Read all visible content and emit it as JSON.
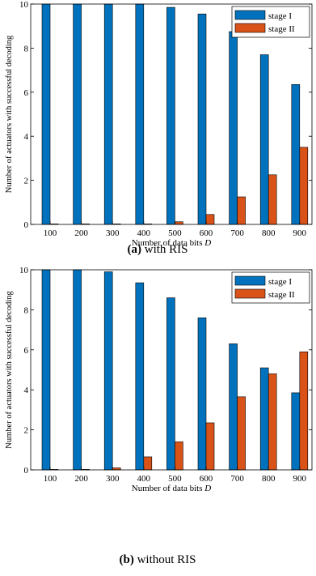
{
  "chart_data": [
    {
      "type": "bar",
      "caption_label": "(a)",
      "caption_text": "with RIS",
      "xlabel_prefix": "Number of data bits ",
      "xlabel_var": "D",
      "ylabel": "Number of actuators with successful decoding",
      "categories": [
        "100",
        "200",
        "300",
        "400",
        "500",
        "600",
        "700",
        "800",
        "900"
      ],
      "yticks": [
        "0",
        "2",
        "4",
        "6",
        "8",
        "10"
      ],
      "ylim": [
        0,
        10
      ],
      "grid": false,
      "legend_position": "top-right",
      "series": [
        {
          "name": "stage I",
          "color": "#0072BD",
          "values": [
            10,
            10,
            10,
            10,
            9.85,
            9.55,
            8.75,
            7.7,
            6.35
          ]
        },
        {
          "name": "stage II",
          "color": "#D95319",
          "values": [
            0,
            0,
            0,
            0,
            0.12,
            0.45,
            1.25,
            2.25,
            3.5
          ]
        }
      ]
    },
    {
      "type": "bar",
      "caption_label": "(b)",
      "caption_text": "without RIS",
      "xlabel_prefix": "Number of data bits ",
      "xlabel_var": "D",
      "ylabel": "Number of actuators with successful decoding",
      "categories": [
        "100",
        "200",
        "300",
        "400",
        "500",
        "600",
        "700",
        "800",
        "900"
      ],
      "yticks": [
        "0",
        "2",
        "4",
        "6",
        "8",
        "10"
      ],
      "ylim": [
        0,
        10
      ],
      "grid": false,
      "legend_position": "top-right",
      "series": [
        {
          "name": "stage I",
          "color": "#0072BD",
          "values": [
            10,
            10,
            9.9,
            9.35,
            8.6,
            7.6,
            6.3,
            5.1,
            3.85
          ]
        },
        {
          "name": "stage II",
          "color": "#D95319",
          "values": [
            0,
            0,
            0.1,
            0.65,
            1.4,
            2.35,
            3.65,
            4.8,
            5.9
          ]
        }
      ]
    }
  ]
}
